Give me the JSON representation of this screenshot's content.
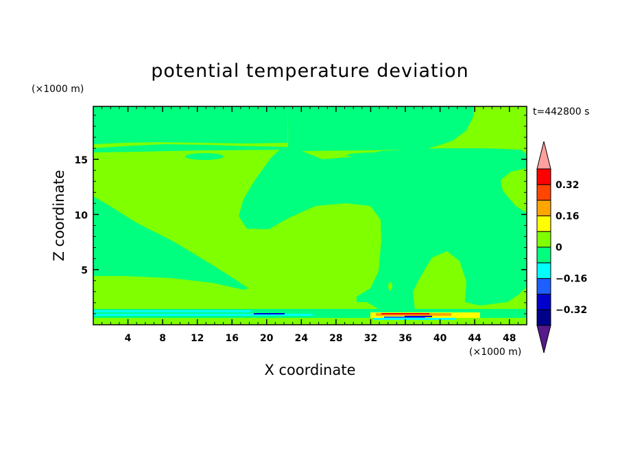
{
  "chart_data": {
    "type": "heatmap",
    "title": "potential temperature deviation",
    "xlabel": "X coordinate",
    "ylabel": "Z coordinate",
    "x_unit": "(×1000 m)",
    "y_unit": "(×1000 m)",
    "time_label": "t=442800 s",
    "xlim": [
      0,
      50
    ],
    "ylim": [
      0,
      19.8
    ],
    "x_ticks": [
      4,
      8,
      12,
      16,
      20,
      24,
      28,
      32,
      36,
      40,
      44,
      48
    ],
    "y_ticks": [
      5,
      10,
      15
    ],
    "colorbar": {
      "labels": [
        "0.32",
        "0.16",
        "0",
        "-0.16",
        "-0.32"
      ],
      "label_values": [
        0.32,
        0.16,
        0,
        -0.16,
        -0.32
      ],
      "levels": [
        -0.4,
        -0.32,
        -0.24,
        -0.16,
        -0.08,
        0,
        0.08,
        0.16,
        0.24,
        0.32,
        0.4
      ],
      "colors": [
        "#551a8b",
        "#00008b",
        "#0000cd",
        "#1e5fff",
        "#00ffff",
        "#00ff7f",
        "#7fff00",
        "#ffff00",
        "#ffa500",
        "#ff4500",
        "#ff0000",
        "#ffa0a0"
      ]
    },
    "field": {
      "background_color": "#7fff00",
      "description_regions": [
        {
          "name": "upper-right-negative-band",
          "value_class": "0 to -0.08",
          "color": "#00ff7f"
        },
        {
          "name": "left-mid-negative-wedge",
          "value_class": "0 to -0.08",
          "color": "#00ff7f"
        },
        {
          "name": "near-surface-anomaly",
          "value_class": "-0.32 to 0.32",
          "color": "mixed"
        }
      ]
    }
  }
}
